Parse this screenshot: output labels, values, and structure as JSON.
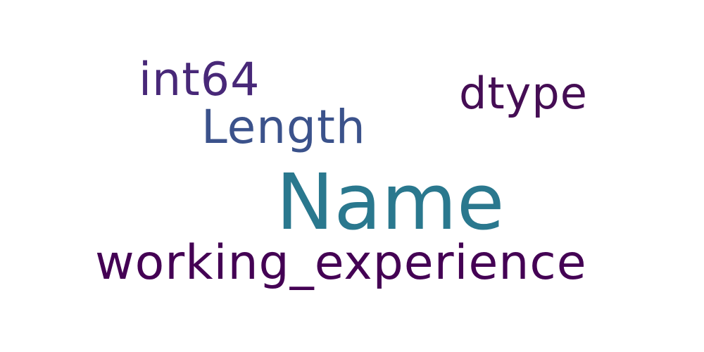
{
  "words": [
    {
      "text": "Name",
      "color": "#2a788e"
    },
    {
      "text": "working_experience",
      "color": "#440154"
    },
    {
      "text": "Length",
      "color": "#3b528b"
    },
    {
      "text": "int64",
      "color": "#482878"
    },
    {
      "text": "dtype",
      "color": "#450d54"
    }
  ],
  "background": "#ffffff"
}
